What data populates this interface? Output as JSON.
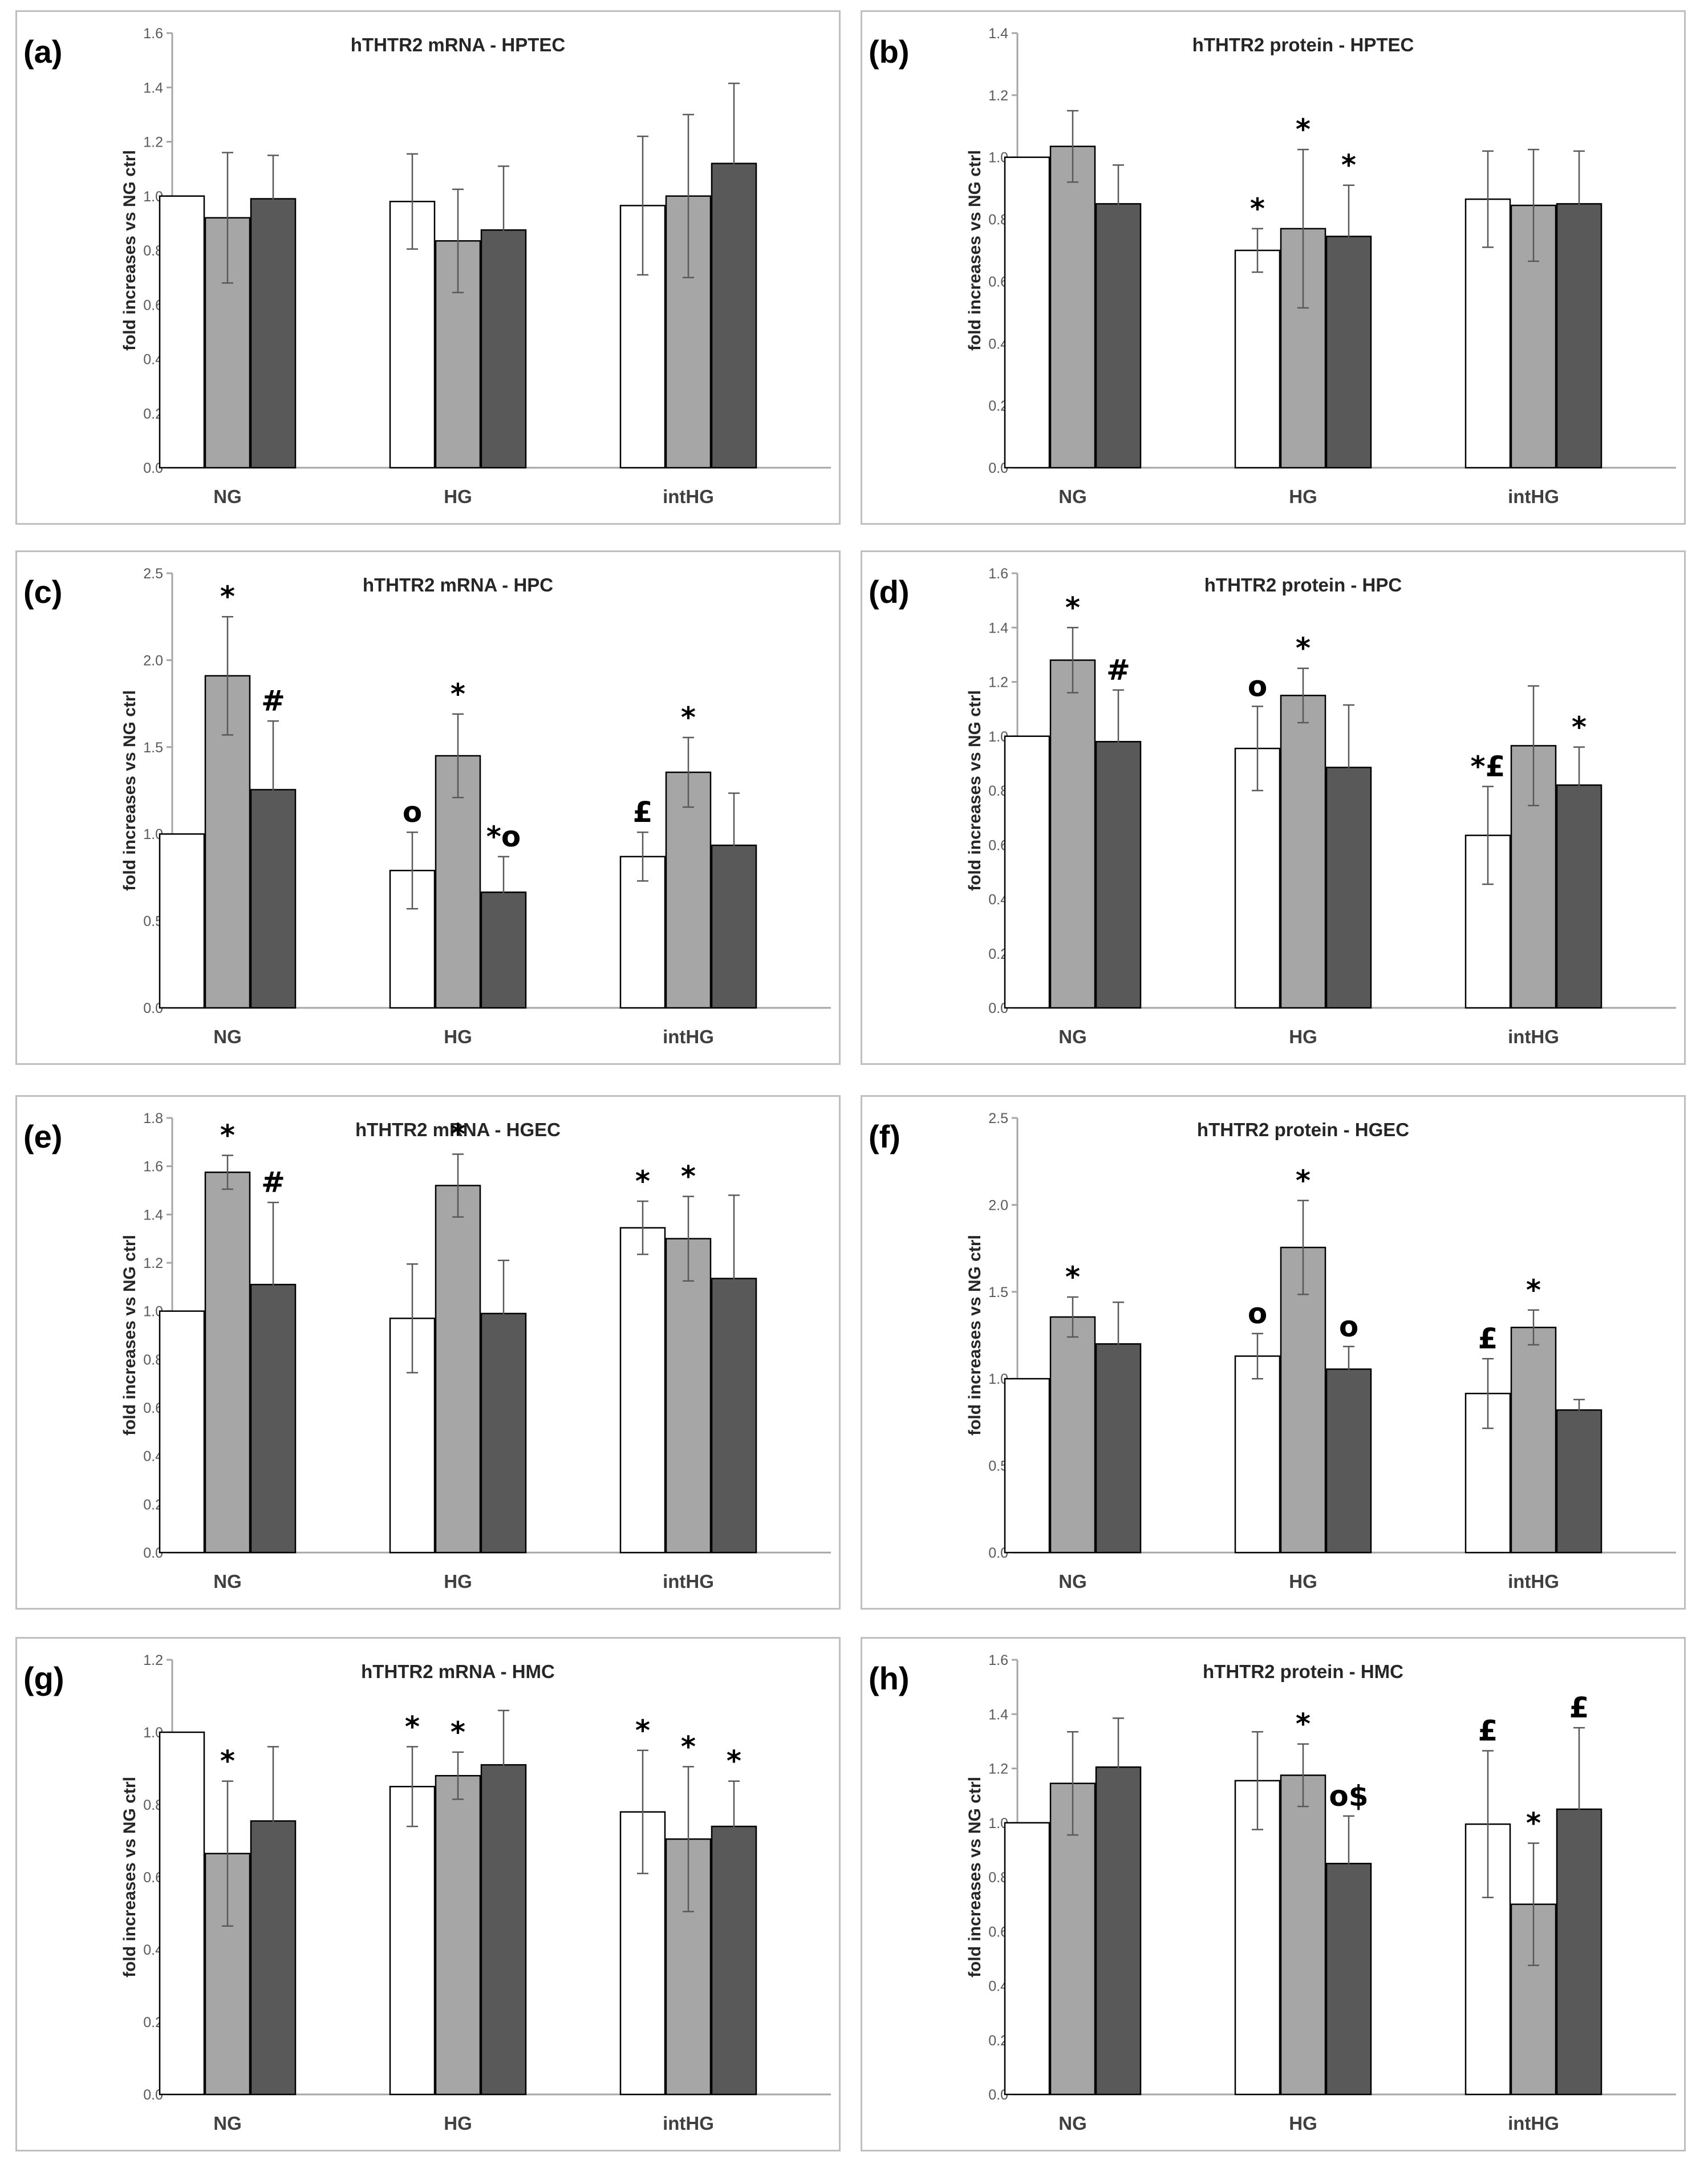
{
  "figure": {
    "ylabel": "fold increases vs NG ctrl",
    "bar_colors": [
      "#ffffff",
      "#a6a6a6",
      "#595959"
    ]
  },
  "chart_data": [
    {
      "panel_label": "(a)",
      "title": "hTHTR2 mRNA - HPTEC",
      "type": "bar",
      "ylabel": "fold increases vs NG ctrl",
      "ylim": [
        0,
        1.6
      ],
      "yticks": [
        "0.0",
        "0.2",
        "0.4",
        "0.6",
        "0.8",
        "1.0",
        "1.2",
        "1.4",
        "1.6"
      ],
      "categories": [
        "NG",
        "HG",
        "intHG"
      ],
      "series": [
        {
          "name": "white",
          "values": [
            1.0,
            0.98,
            0.965
          ],
          "errors": [
            0,
            0.175,
            0.255
          ]
        },
        {
          "name": "light-grey",
          "values": [
            0.92,
            0.835,
            1.0
          ],
          "errors": [
            0.24,
            0.19,
            0.3
          ]
        },
        {
          "name": "dark-grey",
          "values": [
            0.99,
            0.875,
            1.12
          ],
          "errors": [
            0.16,
            0.235,
            0.295
          ]
        }
      ],
      "annotations": []
    },
    {
      "panel_label": "(b)",
      "title": "hTHTR2 protein - HPTEC",
      "type": "bar",
      "ylabel": "fold increases vs NG ctrl",
      "ylim": [
        0,
        1.4
      ],
      "yticks": [
        "0.0",
        "0.2",
        "0.4",
        "0.6",
        "0.8",
        "1.0",
        "1.2",
        "1.4"
      ],
      "categories": [
        "NG",
        "HG",
        "intHG"
      ],
      "series": [
        {
          "name": "white",
          "values": [
            1.0,
            0.7,
            0.865
          ],
          "errors": [
            0,
            0.07,
            0.155
          ]
        },
        {
          "name": "light-grey",
          "values": [
            1.035,
            0.77,
            0.845
          ],
          "errors": [
            0.115,
            0.255,
            0.18
          ]
        },
        {
          "name": "dark-grey",
          "values": [
            0.85,
            0.745,
            0.85
          ],
          "errors": [
            0.125,
            0.165,
            0.17
          ]
        }
      ],
      "annotations": [
        {
          "category": 1,
          "series": 0,
          "text": "*"
        },
        {
          "category": 1,
          "series": 1,
          "text": "*"
        },
        {
          "category": 1,
          "series": 2,
          "text": "*"
        }
      ]
    },
    {
      "panel_label": "(c)",
      "title": "hTHTR2 mRNA - HPC",
      "type": "bar",
      "ylabel": "fold increases vs NG ctrl",
      "ylim": [
        0,
        2.5
      ],
      "yticks": [
        "0.0",
        "0.5",
        "1.0",
        "1.5",
        "2.0",
        "2.5"
      ],
      "categories": [
        "NG",
        "HG",
        "intHG"
      ],
      "series": [
        {
          "name": "white",
          "values": [
            1.0,
            0.79,
            0.87
          ],
          "errors": [
            0,
            0.22,
            0.14
          ]
        },
        {
          "name": "light-grey",
          "values": [
            1.91,
            1.45,
            1.355
          ],
          "errors": [
            0.34,
            0.24,
            0.2
          ]
        },
        {
          "name": "dark-grey",
          "values": [
            1.255,
            0.665,
            0.935
          ],
          "errors": [
            0.395,
            0.205,
            0.3
          ]
        }
      ],
      "annotations": [
        {
          "category": 0,
          "series": 1,
          "text": "*"
        },
        {
          "category": 0,
          "series": 2,
          "text": "#"
        },
        {
          "category": 1,
          "series": 0,
          "text": "o"
        },
        {
          "category": 1,
          "series": 1,
          "text": "*"
        },
        {
          "category": 1,
          "series": 2,
          "text": "*o"
        },
        {
          "category": 2,
          "series": 0,
          "text": "£"
        },
        {
          "category": 2,
          "series": 1,
          "text": "*"
        }
      ]
    },
    {
      "panel_label": "(d)",
      "title": "hTHTR2 protein - HPC",
      "type": "bar",
      "ylabel": "fold increases vs NG ctrl",
      "ylim": [
        0,
        1.6
      ],
      "yticks": [
        "0.0",
        "0.2",
        "0.4",
        "0.6",
        "0.8",
        "1.0",
        "1.2",
        "1.4",
        "1.6"
      ],
      "categories": [
        "NG",
        "HG",
        "intHG"
      ],
      "series": [
        {
          "name": "white",
          "values": [
            1.0,
            0.955,
            0.635
          ],
          "errors": [
            0,
            0.155,
            0.18
          ]
        },
        {
          "name": "light-grey",
          "values": [
            1.28,
            1.15,
            0.965
          ],
          "errors": [
            0.12,
            0.1,
            0.22
          ]
        },
        {
          "name": "dark-grey",
          "values": [
            0.98,
            0.885,
            0.82
          ],
          "errors": [
            0.19,
            0.23,
            0.14
          ]
        }
      ],
      "annotations": [
        {
          "category": 0,
          "series": 1,
          "text": "*"
        },
        {
          "category": 0,
          "series": 2,
          "text": "#"
        },
        {
          "category": 1,
          "series": 0,
          "text": "o"
        },
        {
          "category": 1,
          "series": 1,
          "text": "*"
        },
        {
          "category": 2,
          "series": 0,
          "text": "*£"
        },
        {
          "category": 2,
          "series": 2,
          "text": "*"
        }
      ]
    },
    {
      "panel_label": "(e)",
      "title": "hTHTR2 mRNA - HGEC",
      "type": "bar",
      "ylabel": "fold increases vs NG ctrl",
      "ylim": [
        0,
        1.8
      ],
      "yticks": [
        "0.0",
        "0.2",
        "0.4",
        "0.6",
        "0.8",
        "1.0",
        "1.2",
        "1.4",
        "1.6",
        "1.8"
      ],
      "categories": [
        "NG",
        "HG",
        "intHG"
      ],
      "series": [
        {
          "name": "white",
          "values": [
            1.0,
            0.97,
            1.345
          ],
          "errors": [
            0,
            0.225,
            0.11
          ]
        },
        {
          "name": "light-grey",
          "values": [
            1.575,
            1.52,
            1.3
          ],
          "errors": [
            0.07,
            0.13,
            0.175
          ]
        },
        {
          "name": "dark-grey",
          "values": [
            1.11,
            0.99,
            1.135
          ],
          "errors": [
            0.34,
            0.22,
            0.345
          ]
        }
      ],
      "annotations": [
        {
          "category": 0,
          "series": 1,
          "text": "*"
        },
        {
          "category": 0,
          "series": 2,
          "text": "#"
        },
        {
          "category": 1,
          "series": 1,
          "text": "*"
        },
        {
          "category": 2,
          "series": 0,
          "text": "*"
        },
        {
          "category": 2,
          "series": 1,
          "text": "*"
        }
      ]
    },
    {
      "panel_label": "(f)",
      "title": "hTHTR2 protein - HGEC",
      "type": "bar",
      "ylabel": "fold increases vs NG ctrl",
      "ylim": [
        0,
        2.5
      ],
      "yticks": [
        "0.0",
        "0.5",
        "1.0",
        "1.5",
        "2.0",
        "2.5"
      ],
      "categories": [
        "NG",
        "HG",
        "intHG"
      ],
      "series": [
        {
          "name": "white",
          "values": [
            1.0,
            1.13,
            0.915
          ],
          "errors": [
            0,
            0.13,
            0.2
          ]
        },
        {
          "name": "light-grey",
          "values": [
            1.355,
            1.755,
            1.295
          ],
          "errors": [
            0.115,
            0.27,
            0.1
          ]
        },
        {
          "name": "dark-grey",
          "values": [
            1.2,
            1.055,
            0.82
          ],
          "errors": [
            0.24,
            0.13,
            0.06
          ]
        }
      ],
      "annotations": [
        {
          "category": 0,
          "series": 1,
          "text": "*"
        },
        {
          "category": 1,
          "series": 0,
          "text": "o"
        },
        {
          "category": 1,
          "series": 1,
          "text": "*"
        },
        {
          "category": 1,
          "series": 2,
          "text": "o"
        },
        {
          "category": 2,
          "series": 0,
          "text": "£"
        },
        {
          "category": 2,
          "series": 1,
          "text": "*"
        }
      ]
    },
    {
      "panel_label": "(g)",
      "title": "hTHTR2 mRNA - HMC",
      "type": "bar",
      "ylabel": "fold increases vs NG ctrl",
      "ylim": [
        0,
        1.2
      ],
      "yticks": [
        "0.0",
        "0.2",
        "0.4",
        "0.6",
        "0.8",
        "1.0",
        "1.2"
      ],
      "categories": [
        "NG",
        "HG",
        "intHG"
      ],
      "series": [
        {
          "name": "white",
          "values": [
            1.0,
            0.85,
            0.78
          ],
          "errors": [
            0,
            0.11,
            0.17
          ]
        },
        {
          "name": "light-grey",
          "values": [
            0.665,
            0.88,
            0.705
          ],
          "errors": [
            0.2,
            0.065,
            0.2
          ]
        },
        {
          "name": "dark-grey",
          "values": [
            0.755,
            0.91,
            0.74
          ],
          "errors": [
            0.205,
            0.15,
            0.125
          ]
        }
      ],
      "annotations": [
        {
          "category": 0,
          "series": 1,
          "text": "*"
        },
        {
          "category": 1,
          "series": 0,
          "text": "*"
        },
        {
          "category": 1,
          "series": 1,
          "text": "*"
        },
        {
          "category": 2,
          "series": 0,
          "text": "*"
        },
        {
          "category": 2,
          "series": 1,
          "text": "*"
        },
        {
          "category": 2,
          "series": 2,
          "text": "*"
        }
      ]
    },
    {
      "panel_label": "(h)",
      "title": "hTHTR2 protein - HMC",
      "type": "bar",
      "ylabel": "fold increases vs NG ctrl",
      "ylim": [
        0,
        1.6
      ],
      "yticks": [
        "0.0",
        "0.2",
        "0.4",
        "0.6",
        "0.8",
        "1.0",
        "1.2",
        "1.4",
        "1.6"
      ],
      "categories": [
        "NG",
        "HG",
        "intHG"
      ],
      "series": [
        {
          "name": "white",
          "values": [
            1.0,
            1.155,
            0.995
          ],
          "errors": [
            0,
            0.18,
            0.27
          ]
        },
        {
          "name": "light-grey",
          "values": [
            1.145,
            1.175,
            0.7
          ],
          "errors": [
            0.19,
            0.115,
            0.225
          ]
        },
        {
          "name": "dark-grey",
          "values": [
            1.205,
            0.85,
            1.05
          ],
          "errors": [
            0.18,
            0.175,
            0.3
          ]
        }
      ],
      "annotations": [
        {
          "category": 1,
          "series": 1,
          "text": "*"
        },
        {
          "category": 1,
          "series": 2,
          "text": "o$"
        },
        {
          "category": 2,
          "series": 0,
          "text": "£"
        },
        {
          "category": 2,
          "series": 1,
          "text": "*"
        },
        {
          "category": 2,
          "series": 2,
          "text": "£"
        }
      ]
    }
  ]
}
